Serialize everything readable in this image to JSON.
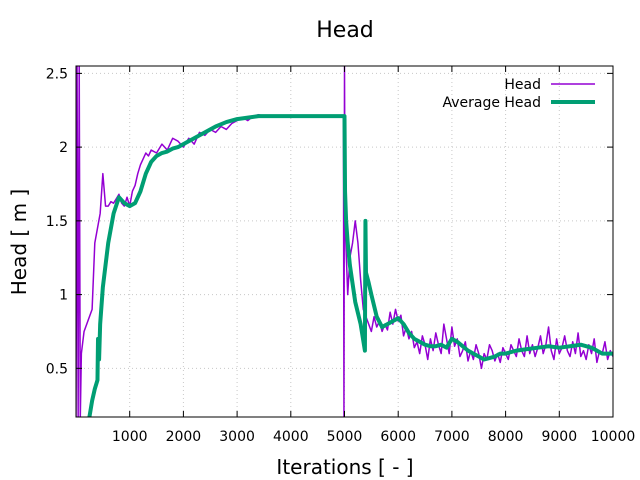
{
  "chart_data": {
    "type": "line",
    "title": "Head",
    "xlabel": "Iterations [ - ]",
    "ylabel": "Head [ m ]",
    "xlim": [
      0,
      10000
    ],
    "ylim": [
      0.17,
      2.55
    ],
    "x_ticks": [
      1000,
      2000,
      3000,
      4000,
      5000,
      6000,
      7000,
      8000,
      9000,
      10000
    ],
    "x_tick_labels": [
      "1000",
      "2000",
      "3000",
      "4000",
      "5000",
      "6000",
      "7000",
      "8000",
      "9000",
      "10000"
    ],
    "y_ticks": [
      0.5,
      1,
      1.5,
      2,
      2.5
    ],
    "y_tick_labels": [
      "0.5",
      "1",
      "1.5",
      "2",
      "2.5"
    ],
    "grid": true,
    "legend_position": "top-right",
    "series": [
      {
        "name": "Head",
        "color": "#9400d3",
        "line_width": 1.5,
        "x": [
          0,
          20,
          40,
          60,
          80,
          100,
          150,
          200,
          250,
          300,
          350,
          400,
          450,
          500,
          550,
          600,
          650,
          700,
          750,
          800,
          850,
          900,
          950,
          1000,
          1050,
          1100,
          1150,
          1200,
          1250,
          1300,
          1350,
          1400,
          1500,
          1600,
          1700,
          1800,
          1900,
          2000,
          2100,
          2200,
          2300,
          2400,
          2500,
          2600,
          2700,
          2800,
          2900,
          3000,
          3100,
          3200,
          3300,
          3400,
          3500,
          4000,
          4500,
          4980,
          4990,
          5000,
          5010,
          5030,
          5060,
          5100,
          5150,
          5200,
          5250,
          5300,
          5350,
          5400,
          5450,
          5500,
          5550,
          5600,
          5650,
          5700,
          5750,
          5800,
          5850,
          5900,
          5950,
          6000,
          6050,
          6100,
          6150,
          6200,
          6250,
          6300,
          6350,
          6400,
          6450,
          6500,
          6550,
          6600,
          6650,
          6700,
          6750,
          6800,
          6850,
          6900,
          6950,
          7000,
          7050,
          7100,
          7150,
          7200,
          7250,
          7300,
          7350,
          7400,
          7450,
          7500,
          7550,
          7600,
          7650,
          7700,
          7750,
          7800,
          7850,
          7900,
          7950,
          8000,
          8050,
          8100,
          8150,
          8200,
          8250,
          8300,
          8350,
          8400,
          8450,
          8500,
          8550,
          8600,
          8650,
          8700,
          8750,
          8800,
          8850,
          8900,
          8950,
          9000,
          9050,
          9100,
          9150,
          9200,
          9250,
          9300,
          9350,
          9400,
          9450,
          9500,
          9550,
          9600,
          9650,
          9700,
          9750,
          9800,
          9850,
          9900,
          9950,
          10000
        ],
        "values": [
          0.17,
          2.55,
          0.17,
          2.55,
          0.17,
          0.6,
          0.75,
          0.8,
          0.85,
          0.9,
          1.35,
          1.45,
          1.55,
          1.82,
          1.6,
          1.6,
          1.63,
          1.62,
          1.65,
          1.68,
          1.62,
          1.6,
          1.66,
          1.6,
          1.7,
          1.74,
          1.82,
          1.88,
          1.92,
          1.96,
          1.94,
          1.98,
          1.96,
          2.02,
          1.98,
          2.06,
          2.04,
          2.0,
          2.06,
          2.02,
          2.1,
          2.08,
          2.12,
          2.1,
          2.14,
          2.12,
          2.16,
          2.18,
          2.2,
          2.18,
          2.21,
          2.22,
          2.21,
          2.21,
          2.21,
          2.21,
          0.17,
          2.55,
          1.5,
          1.3,
          1.0,
          1.25,
          1.35,
          1.5,
          1.35,
          1.1,
          0.9,
          0.85,
          0.8,
          0.75,
          0.85,
          0.78,
          0.82,
          0.75,
          0.8,
          0.76,
          0.88,
          0.8,
          0.9,
          0.82,
          0.86,
          0.72,
          0.78,
          0.7,
          0.75,
          0.64,
          0.68,
          0.6,
          0.72,
          0.66,
          0.56,
          0.7,
          0.62,
          0.74,
          0.66,
          0.6,
          0.8,
          0.7,
          0.6,
          0.78,
          0.65,
          0.7,
          0.58,
          0.62,
          0.68,
          0.55,
          0.62,
          0.56,
          0.66,
          0.6,
          0.5,
          0.6,
          0.56,
          0.66,
          0.62,
          0.55,
          0.6,
          0.54,
          0.64,
          0.6,
          0.56,
          0.66,
          0.62,
          0.58,
          0.7,
          0.62,
          0.58,
          0.72,
          0.6,
          0.66,
          0.58,
          0.64,
          0.72,
          0.6,
          0.66,
          0.78,
          0.62,
          0.56,
          0.7,
          0.6,
          0.64,
          0.72,
          0.62,
          0.58,
          0.68,
          0.6,
          0.74,
          0.58,
          0.62,
          0.56,
          0.66,
          0.6,
          0.7,
          0.54,
          0.62,
          0.6,
          0.68,
          0.56,
          0.62,
          0.58
        ]
      },
      {
        "name": "Average Head",
        "color": "#009e73",
        "line_width": 4,
        "x": [
          250,
          300,
          350,
          400,
          410,
          430,
          450,
          500,
          600,
          700,
          800,
          900,
          1000,
          1100,
          1200,
          1300,
          1400,
          1500,
          1600,
          1700,
          1800,
          1900,
          2000,
          2200,
          2400,
          2600,
          2800,
          3000,
          3200,
          3400,
          3600,
          4000,
          4500,
          5000,
          5010,
          5030,
          5060,
          5100,
          5200,
          5300,
          5380,
          5390,
          5400,
          5450,
          5500,
          5600,
          5700,
          5800,
          5900,
          6000,
          6100,
          6200,
          6300,
          6400,
          6500,
          6600,
          6700,
          6800,
          6900,
          7000,
          7100,
          7200,
          7300,
          7400,
          7500,
          7600,
          7700,
          7800,
          7900,
          8000,
          8200,
          8400,
          8600,
          8800,
          9000,
          9200,
          9400,
          9600,
          9800,
          10000
        ],
        "values": [
          0.17,
          0.28,
          0.36,
          0.42,
          0.7,
          0.56,
          0.8,
          1.05,
          1.35,
          1.55,
          1.66,
          1.62,
          1.6,
          1.62,
          1.7,
          1.82,
          1.9,
          1.94,
          1.96,
          1.97,
          1.99,
          2.0,
          2.02,
          2.06,
          2.1,
          2.14,
          2.17,
          2.19,
          2.2,
          2.21,
          2.21,
          2.21,
          2.21,
          2.21,
          1.7,
          1.5,
          1.35,
          1.2,
          0.95,
          0.8,
          0.62,
          1.5,
          1.15,
          1.08,
          1.0,
          0.85,
          0.78,
          0.8,
          0.82,
          0.84,
          0.8,
          0.74,
          0.7,
          0.68,
          0.66,
          0.65,
          0.65,
          0.66,
          0.64,
          0.7,
          0.68,
          0.65,
          0.62,
          0.6,
          0.58,
          0.56,
          0.57,
          0.58,
          0.6,
          0.6,
          0.62,
          0.63,
          0.64,
          0.65,
          0.64,
          0.65,
          0.66,
          0.64,
          0.6,
          0.6
        ]
      }
    ]
  }
}
